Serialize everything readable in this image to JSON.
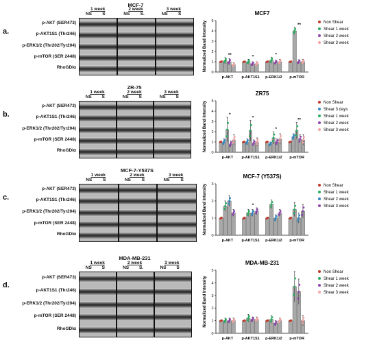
{
  "figure": {
    "panels": [
      {
        "id": "a",
        "label": "a.",
        "blot": {
          "title": "MCF-7",
          "weeks": [
            "1 week",
            "2 week",
            "3 week"
          ],
          "lanes": [
            "NS",
            "S",
            "NS",
            "S.",
            "NS",
            "S"
          ],
          "proteins": [
            "p-AKT (SER473)",
            "p-AKT1S1 (Thr246)",
            "p-ERK1/2 (Thr202/Tyr204)",
            "p-mTOR (SER 2448)",
            "RhoGDIα"
          ]
        },
        "chart_data": {
          "type": "bar",
          "title": "MCF7",
          "ylabel": "Normalized Band Intensity",
          "xlabel": "",
          "categories": [
            "p-AKT",
            "p-AKT1S1",
            "p-ERK1/2",
            "p-mTOR"
          ],
          "ylim": [
            0,
            5
          ],
          "yticks": [
            0,
            1,
            2,
            3,
            4,
            5
          ],
          "grid": false,
          "legend_position": "right",
          "series": [
            {
              "name": "Non Shear",
              "color": "#c0392b",
              "values": [
                1,
                1,
                1,
                1
              ],
              "errors": [
                0.05,
                0.05,
                0.05,
                0.05
              ]
            },
            {
              "name": "Shear 1 week",
              "color": "#27ae60",
              "values": [
                1.1,
                1.0,
                1.15,
                4.0
              ],
              "errors": [
                0.3,
                0.25,
                0.3,
                0.35
              ]
            },
            {
              "name": "Shear 2 week",
              "color": "#8e44ad",
              "values": [
                1.0,
                0.8,
                0.95,
                1.0
              ],
              "errors": [
                0.3,
                0.2,
                0.2,
                0.2
              ]
            },
            {
              "name": "Shear 3 week",
              "color": "#f5a3a3",
              "values": [
                0.7,
                0.8,
                1.0,
                1.0
              ],
              "errors": [
                0.2,
                0.2,
                0.25,
                0.25
              ]
            }
          ],
          "annotations": [
            "**",
            "*",
            "*",
            "**"
          ]
        }
      },
      {
        "id": "b",
        "label": "b.",
        "blot": {
          "title": "ZR-75",
          "weeks": [
            "1 week",
            "2 week",
            "3 week"
          ],
          "lanes": [
            "NS",
            "S",
            "NS",
            "S",
            "NS",
            "S"
          ],
          "proteins": [
            "p-AKT (SER473)",
            "p-AKT1S1 (Thr246)",
            "p-ERK1/2 (Thr202/Tyr204)",
            "p-mTOR (SER 2448)",
            "RhoGDIα"
          ]
        },
        "chart_data": {
          "type": "bar",
          "title": "ZR75",
          "ylabel": "Normalized Band Intensity",
          "xlabel": "",
          "categories": [
            "p-AKT",
            "p-AKT1S1",
            "p-ERK1/2",
            "p-mTOR"
          ],
          "ylim": [
            0,
            5
          ],
          "yticks": [
            0,
            1,
            2,
            3,
            4,
            5
          ],
          "grid": false,
          "legend_position": "right",
          "series": [
            {
              "name": "Non Shear",
              "color": "#c0392b",
              "values": [
                1,
                1,
                1,
                1
              ],
              "errors": [
                0.05,
                0.05,
                0.05,
                0.05
              ]
            },
            {
              "name": "Shear 3 days",
              "color": "#2e86c1",
              "values": [
                1.0,
                1.0,
                0.8,
                1.5
              ],
              "errors": [
                0.3,
                0.3,
                0.2,
                0.3
              ]
            },
            {
              "name": "Shear 1 week",
              "color": "#27ae60",
              "values": [
                2.2,
                2.1,
                1.4,
                2.1
              ],
              "errors": [
                1.2,
                1.0,
                0.6,
                0.8
              ]
            },
            {
              "name": "Shear 2 week",
              "color": "#8e44ad",
              "values": [
                0.8,
                0.9,
                1.0,
                1.3
              ],
              "errors": [
                0.3,
                0.3,
                0.3,
                0.4
              ]
            },
            {
              "name": "Shear 3 week",
              "color": "#f5a3a3",
              "values": [
                1.2,
                1.0,
                1.3,
                1.2
              ],
              "errors": [
                0.5,
                0.4,
                0.5,
                0.5
              ]
            }
          ],
          "annotations": [
            "*",
            "*",
            "*",
            "**"
          ]
        }
      },
      {
        "id": "c",
        "label": "c.",
        "blot": {
          "title": "MCF-7-Y537S",
          "weeks": [
            "1 week",
            "2 week",
            "3 week"
          ],
          "lanes": [
            "NS",
            "S",
            "NS",
            "S",
            "NS",
            "S"
          ],
          "proteins": [
            "p-AKT (SER473)",
            "p-AKT1S1 (Thr246)",
            "p-ERK1/2 (Thr202/Tyr204)",
            "p-mTOR (SER 2448)",
            "RhoGDIα"
          ]
        },
        "chart_data": {
          "type": "bar",
          "title": "MCF-7 (Y537S)",
          "ylabel": "Normalized Band Intensity",
          "xlabel": "",
          "categories": [
            "p-AKT",
            "p-AKT1S1",
            "p-ERK1/2",
            "p-mTOR"
          ],
          "ylim": [
            0,
            3
          ],
          "yticks": [
            0,
            1,
            2,
            3
          ],
          "grid": false,
          "legend_position": "right",
          "series": [
            {
              "name": "Non Shear",
              "color": "#c0392b",
              "values": [
                1,
                1,
                1,
                1
              ],
              "errors": [
                0.05,
                0.05,
                0.05,
                0.05
              ]
            },
            {
              "name": "Shear 1 week",
              "color": "#27ae60",
              "values": [
                1.7,
                1.3,
                1.8,
                1.5
              ],
              "errors": [
                0.3,
                0.2,
                0.25,
                0.4
              ]
            },
            {
              "name": "Shear 2 week",
              "color": "#2e86c1",
              "values": [
                2.0,
                1.3,
                1.0,
                1.0
              ],
              "errors": [
                0.3,
                0.2,
                0.2,
                0.3
              ]
            },
            {
              "name": "Shear 3 week",
              "color": "#8e44ad",
              "values": [
                1.3,
                1.4,
                1.3,
                1.4
              ],
              "errors": [
                0.2,
                0.2,
                0.2,
                0.4
              ]
            }
          ],
          "annotations": [
            "",
            "*",
            "",
            ""
          ]
        }
      },
      {
        "id": "d",
        "label": "d.",
        "blot": {
          "title": "MDA-MB-231",
          "weeks": [
            "1 week",
            "2 week",
            "3 week"
          ],
          "lanes": [
            "NS",
            "S",
            "NS",
            "S.",
            "NS",
            "S"
          ],
          "proteins": [
            "p-AKT (SER473)",
            "p-AKT1S1 (Thr246)",
            "p-ERK1/2 (Thr202/Tyr204)",
            "p-mTOR (SER 2448)",
            "RhoGDIα"
          ]
        },
        "chart_data": {
          "type": "bar",
          "title": "MDA-MB-231",
          "ylabel": "Normalized Band Intensity",
          "xlabel": "",
          "categories": [
            "p-AKT",
            "p-AKT1S1",
            "p-ERK1/2",
            "p-mTOR"
          ],
          "ylim": [
            0,
            5
          ],
          "yticks": [
            0,
            1,
            2,
            3,
            4,
            5
          ],
          "grid": false,
          "legend_position": "right",
          "series": [
            {
              "name": "Non Shear",
              "color": "#c0392b",
              "values": [
                1,
                1,
                1,
                1
              ],
              "errors": [
                0.05,
                0.05,
                0.05,
                0.05
              ]
            },
            {
              "name": "Shear 1 week",
              "color": "#27ae60",
              "values": [
                1.0,
                1.2,
                1.1,
                3.7
              ],
              "errors": [
                0.2,
                0.3,
                0.3,
                1.2
              ]
            },
            {
              "name": "Shear 2 week",
              "color": "#8e44ad",
              "values": [
                1.0,
                1.1,
                0.8,
                3.3
              ],
              "errors": [
                0.2,
                0.2,
                0.2,
                1.0
              ]
            },
            {
              "name": "Shear 3 week",
              "color": "#f5a3a3",
              "values": [
                1.0,
                1.1,
                1.0,
                1.0
              ],
              "errors": [
                0.2,
                0.2,
                0.2,
                0.4
              ]
            }
          ],
          "annotations": [
            "",
            "",
            "",
            ""
          ]
        }
      }
    ]
  }
}
